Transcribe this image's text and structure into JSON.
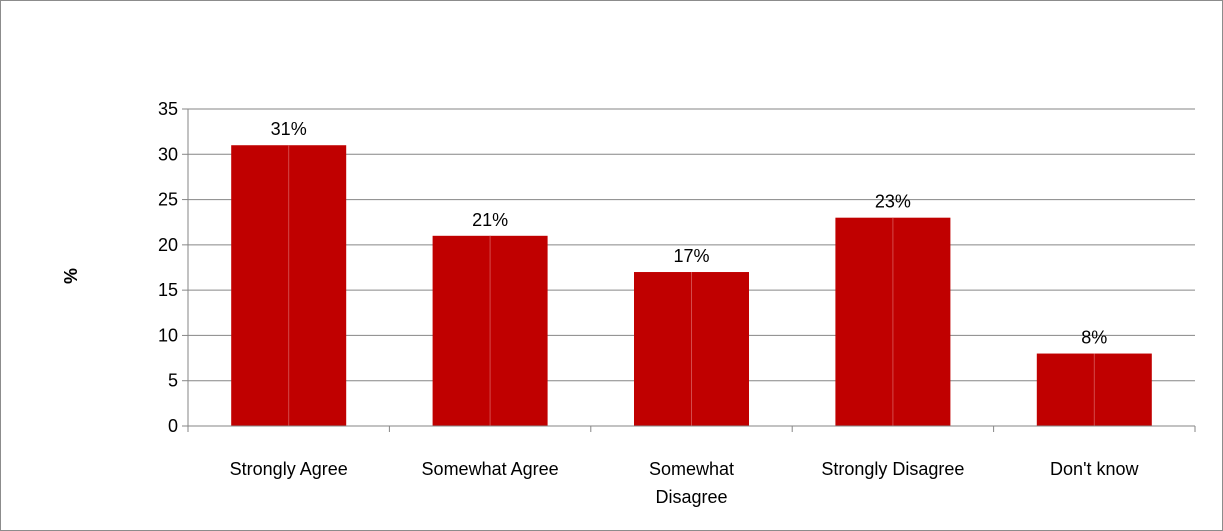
{
  "chart_data": {
    "type": "bar",
    "title": "",
    "xlabel": "",
    "ylabel": "%",
    "ylim": [
      0,
      35
    ],
    "yticks": [
      0,
      5,
      10,
      15,
      20,
      25,
      30,
      35
    ],
    "grid": true,
    "categories": [
      [
        "Strongly Agree"
      ],
      [
        "Somewhat Agree"
      ],
      [
        "Somewhat",
        "Disagree"
      ],
      [
        "Strongly Disagree"
      ],
      [
        "Don't know"
      ]
    ],
    "values": [
      31,
      21,
      17,
      23,
      8
    ],
    "data_labels": [
      "31%",
      "21%",
      "17%",
      "23%",
      "8%"
    ],
    "bar_color": "#c00000",
    "grid_color": "#868686"
  }
}
